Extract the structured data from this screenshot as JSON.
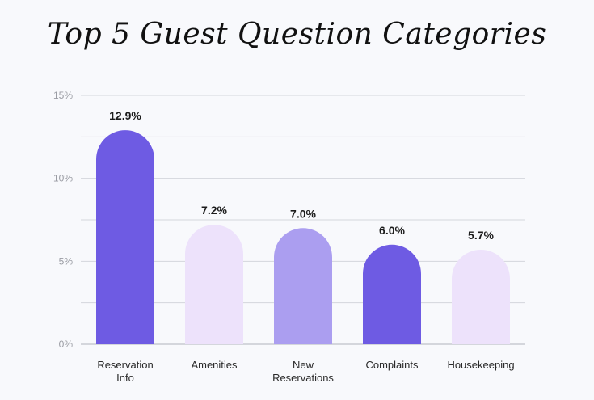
{
  "chart_data": {
    "type": "bar",
    "title": "Top 5 Guest Question Categories",
    "xlabel": "",
    "ylabel": "",
    "ylim": [
      0,
      15
    ],
    "yticks": [
      0,
      5,
      10,
      15
    ],
    "ytick_labels": [
      "0%",
      "5%",
      "10%",
      "15%"
    ],
    "categories": [
      "Reservation Info",
      "Amenities",
      "New Reservations",
      "Complaints",
      "Housekeeping"
    ],
    "category_label_lines": [
      [
        "Reservation",
        "Info"
      ],
      [
        "Amenities"
      ],
      [
        "New",
        "Reservations"
      ],
      [
        "Complaints"
      ],
      [
        "Housekeeping"
      ]
    ],
    "values": [
      12.9,
      7.2,
      7.0,
      6.0,
      5.7
    ],
    "value_labels": [
      "12.9%",
      "7.2%",
      "7.0%",
      "6.0%",
      "5.7%"
    ],
    "bar_colors": [
      "#6e5be3",
      "#ede2fb",
      "#ab9ef0",
      "#6e5be3",
      "#ede2fb"
    ],
    "grid": true,
    "legend": "none"
  }
}
